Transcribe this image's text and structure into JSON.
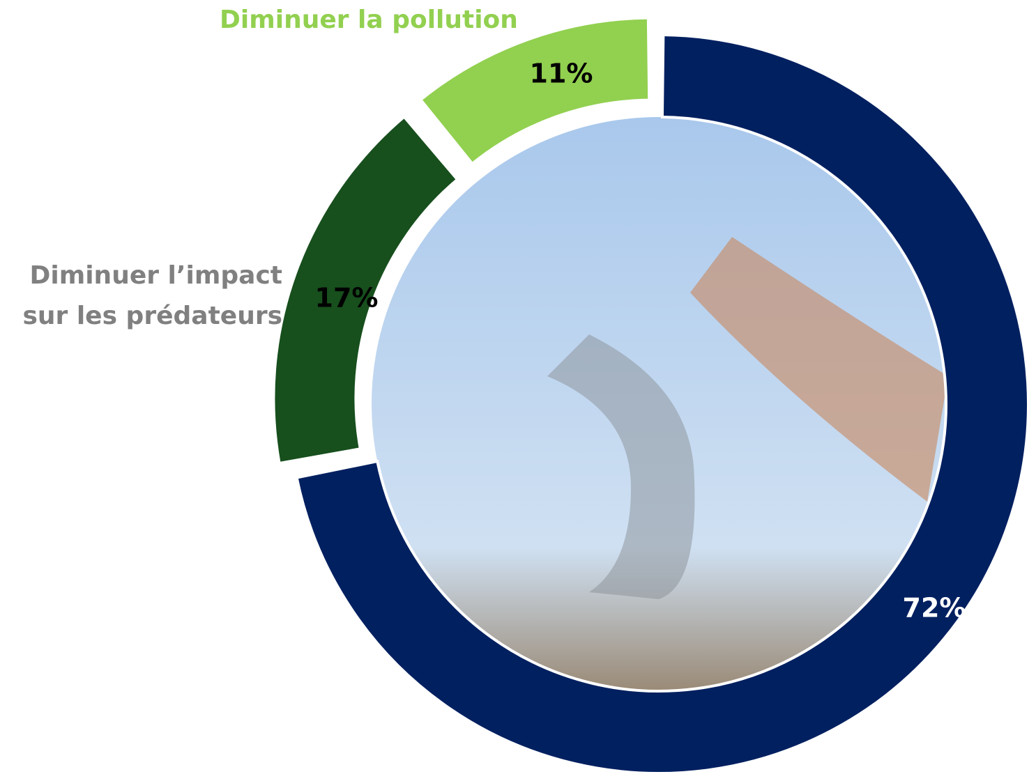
{
  "chart_data": {
    "type": "pie",
    "categories": [
      null,
      "Diminuer l’impact sur les prédateurs",
      "Diminuer la pollution"
    ],
    "values": [
      72,
      17,
      11
    ],
    "value_labels": [
      "72%",
      "17%",
      "11%"
    ],
    "colors": [
      "#012060",
      "#174f1d",
      "#92d050"
    ]
  }
}
